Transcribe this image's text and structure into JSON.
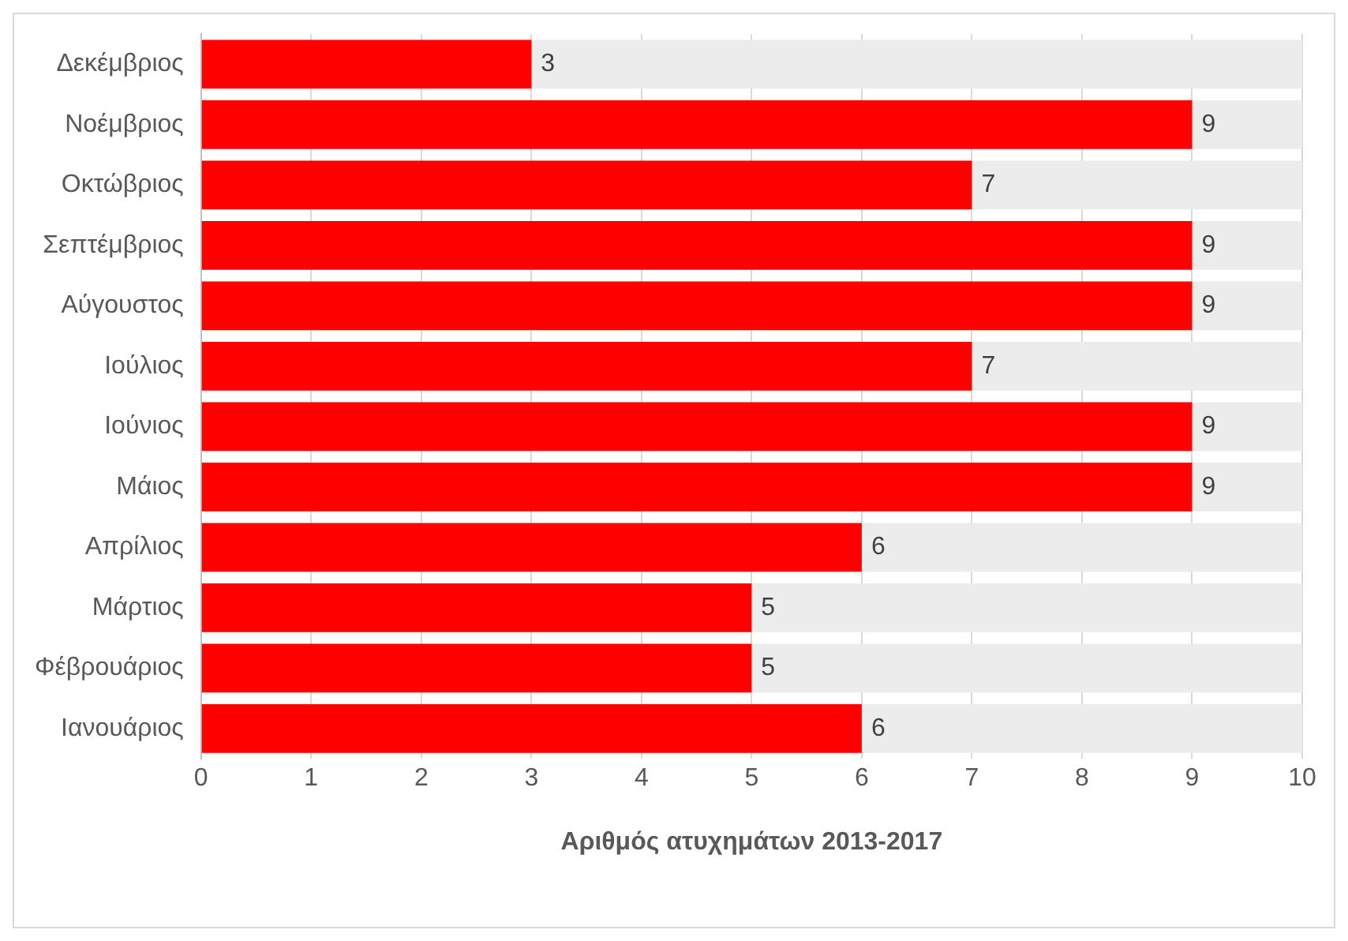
{
  "chart_data": {
    "type": "bar",
    "orientation": "horizontal",
    "xlabel": "Αριθμός ατυχημάτων 2013-2017",
    "categories": [
      "Δεκέμβριος",
      "Νοέμβριος",
      "Οκτώβριος",
      "Σεπτέμβριος",
      "Αύγουστος",
      "Ιούλιος",
      "Ιούνιος",
      "Μάιος",
      "Απρίλιος",
      "Μάρτιος",
      "Φέβρουάριος",
      "Ιανουάριος"
    ],
    "series": [
      {
        "color": "#ff0000",
        "values": [
          3,
          9,
          7,
          9,
          9,
          7,
          9,
          9,
          6,
          5,
          5,
          6
        ],
        "value_labels": [
          "3",
          "9",
          "7",
          "9",
          "9",
          "7",
          "9",
          "9",
          "6",
          "5",
          "5",
          "6"
        ]
      },
      {
        "color": "#ececec",
        "values": [
          7,
          1,
          3,
          1,
          1,
          3,
          1,
          1,
          4,
          5,
          5,
          4
        ]
      }
    ],
    "stacked": true,
    "xlim": [
      0,
      10
    ],
    "xticks": [
      0,
      1,
      2,
      3,
      4,
      5,
      6,
      7,
      8,
      9,
      10
    ],
    "grid": "x",
    "legend": false
  }
}
